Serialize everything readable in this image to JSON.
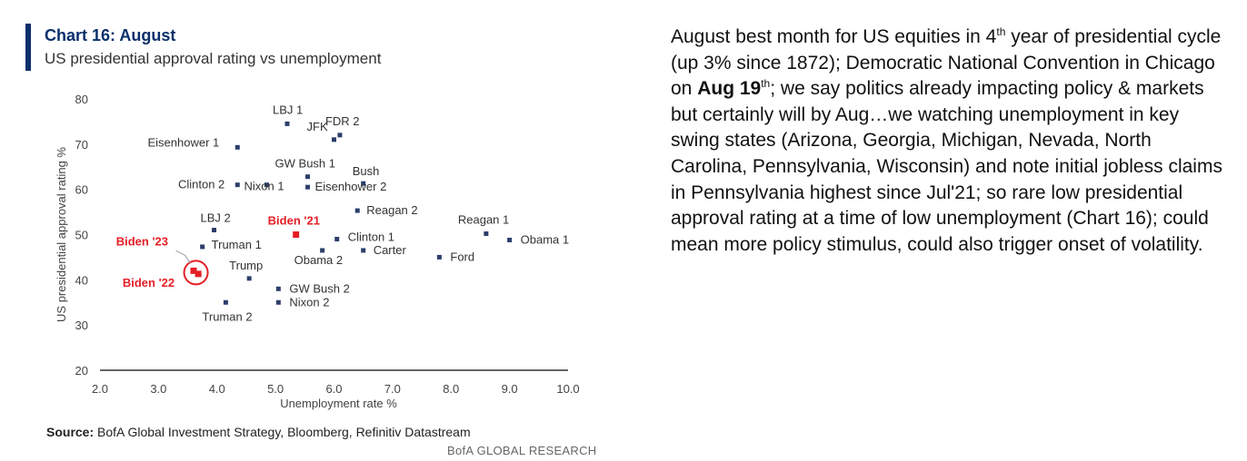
{
  "header": {
    "title": "Chart 16: August",
    "subtitle": "US presidential approval rating vs unemployment"
  },
  "chart_data": {
    "type": "scatter",
    "title": "Chart 16: August",
    "subtitle": "US presidential approval rating vs unemployment",
    "xlabel": "Unemployment rate %",
    "ylabel": "US presidential approval rating %",
    "xlim": [
      2.0,
      10.0
    ],
    "ylim": [
      20,
      80
    ],
    "xticks": [
      "2.0",
      "3.0",
      "4.0",
      "5.0",
      "6.0",
      "7.0",
      "8.0",
      "9.0",
      "10.0"
    ],
    "yticks": [
      "20",
      "30",
      "40",
      "50",
      "60",
      "70",
      "80"
    ],
    "grid": false,
    "highlight_color": "#e41e26",
    "point_color": "#2c3e6b",
    "points": [
      {
        "label": "LBJ 1",
        "x": 5.2,
        "y": 74.5,
        "highlight": false
      },
      {
        "label": "FDR 2",
        "x": 6.1,
        "y": 72.0,
        "highlight": false
      },
      {
        "label": "JFK",
        "x": 6.0,
        "y": 71.0,
        "highlight": false
      },
      {
        "label": "Eisenhower 1",
        "x": 4.35,
        "y": 69.3,
        "highlight": false
      },
      {
        "label": "GW Bush 1",
        "x": 5.55,
        "y": 62.8,
        "highlight": false
      },
      {
        "label": "Bush",
        "x": 6.5,
        "y": 61.3,
        "highlight": false
      },
      {
        "label": "Clinton 2",
        "x": 4.35,
        "y": 61.0,
        "highlight": false
      },
      {
        "label": "Nixon 1",
        "x": 4.85,
        "y": 61.0,
        "highlight": false
      },
      {
        "label": "Eisenhower 2",
        "x": 5.55,
        "y": 60.5,
        "highlight": false
      },
      {
        "label": "Reagan 2",
        "x": 6.4,
        "y": 55.3,
        "highlight": false
      },
      {
        "label": "LBJ 2",
        "x": 3.95,
        "y": 51.0,
        "highlight": false
      },
      {
        "label": "Biden '21",
        "x": 5.35,
        "y": 50.0,
        "highlight": true
      },
      {
        "label": "Reagan 1",
        "x": 8.6,
        "y": 50.2,
        "highlight": false
      },
      {
        "label": "Obama 1",
        "x": 9.0,
        "y": 48.8,
        "highlight": false
      },
      {
        "label": "Clinton 1",
        "x": 6.05,
        "y": 49.0,
        "highlight": false
      },
      {
        "label": "Truman 1",
        "x": 3.75,
        "y": 47.3,
        "highlight": false
      },
      {
        "label": "Carter",
        "x": 6.5,
        "y": 46.5,
        "highlight": false
      },
      {
        "label": "Obama 2",
        "x": 5.8,
        "y": 46.5,
        "highlight": false
      },
      {
        "label": "Ford",
        "x": 7.8,
        "y": 45.0,
        "highlight": false
      },
      {
        "label": "Trump",
        "x": 4.55,
        "y": 40.3,
        "highlight": false
      },
      {
        "label": "GW Bush 2",
        "x": 5.05,
        "y": 38.0,
        "highlight": false
      },
      {
        "label": "Nixon 2",
        "x": 5.05,
        "y": 35.0,
        "highlight": false
      },
      {
        "label": "Truman 2",
        "x": 4.15,
        "y": 35.0,
        "highlight": false
      },
      {
        "label": "Biden '23",
        "x": 3.6,
        "y": 42.0,
        "highlight": true
      },
      {
        "label": "Biden '22",
        "x": 3.68,
        "y": 41.3,
        "highlight": true
      }
    ]
  },
  "source": {
    "label": "Source:",
    "text": "BofA Global Investment Strategy, Bloomberg, Refinitiv Datastream"
  },
  "brand": "BofA GLOBAL RESEARCH",
  "commentary": {
    "p1": "August best month for US equities in 4",
    "sup1": "th",
    "p2": " year of presidential cycle (up 3% since 1872); Democratic National Convention in Chicago on ",
    "bold": "Aug 19",
    "sup2": "th",
    "p3": "; we say politics already impacting policy & markets but certainly will by Aug…we watching unemployment in key swing states (Arizona, Georgia, Michigan, Nevada, North Carolina, Pennsylvania, Wisconsin) and note initial jobless claims in Pennsylvania highest since Jul'21; so rare low presidential approval rating at a time of low unemployment (Chart 16); could mean more policy stimulus, could also trigger onset of volatility."
  }
}
